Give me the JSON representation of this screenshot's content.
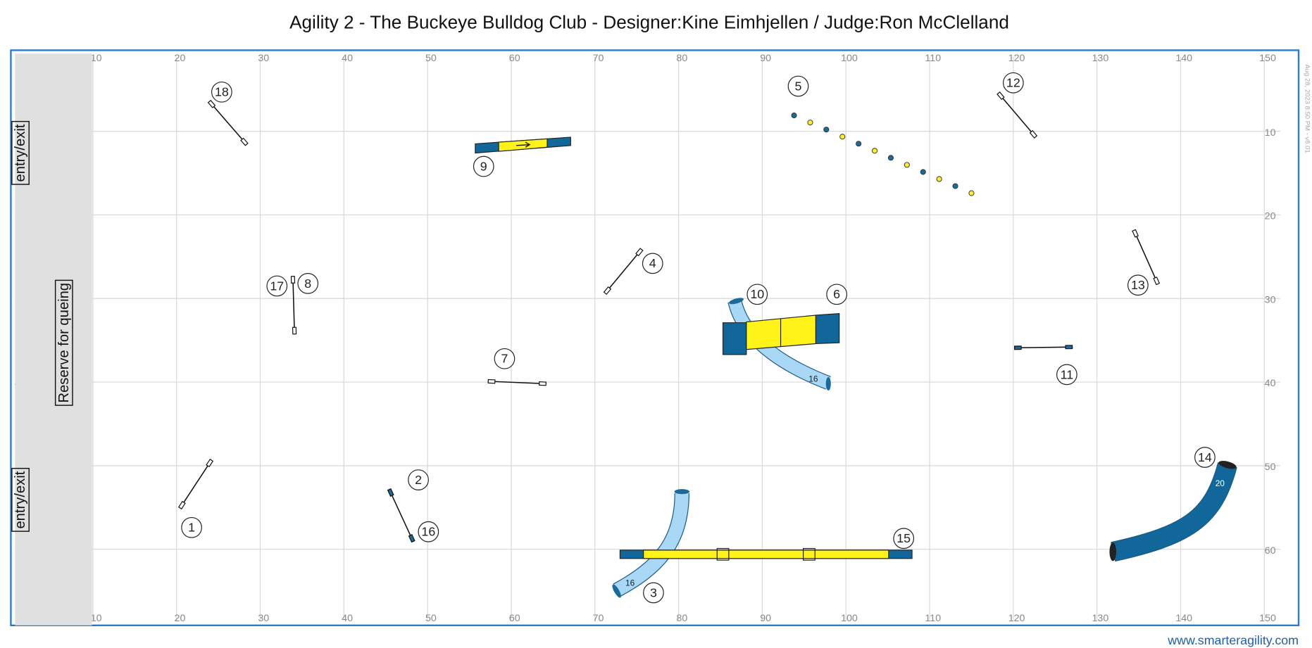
{
  "title": "Agility 2 - The Buckeye Bulldog Club - Designer:Kine Eimhjellen / Judge:Ron McClelland",
  "grid": {
    "xticks": [
      10,
      20,
      30,
      40,
      50,
      60,
      70,
      80,
      90,
      100,
      110,
      120,
      130,
      140,
      150
    ],
    "yticks": [
      10,
      20,
      30,
      40,
      50,
      60
    ]
  },
  "areas": {
    "entry_top": "entry/exit",
    "reserve": "Reserve for queing",
    "entry_bottom": "entry/exit"
  },
  "obstacle_numbers": [
    "1",
    "2",
    "3",
    "4",
    "5",
    "6",
    "7",
    "8",
    "9",
    "10",
    "11",
    "12",
    "13",
    "14",
    "15",
    "16",
    "17",
    "18"
  ],
  "tunnel_lengths": [
    "16",
    "16",
    "20"
  ],
  "timestamp": "Aug 28, 2023 8:50 PM - v8.01",
  "footer": "www.smarteragility.com"
}
